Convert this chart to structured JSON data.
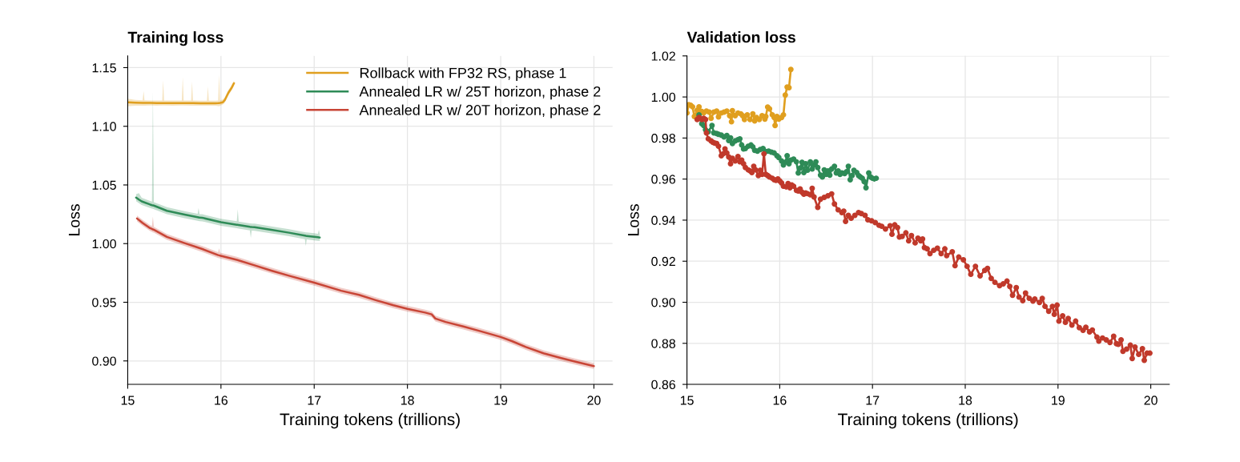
{
  "chart_data": [
    {
      "type": "line",
      "title": "Training loss",
      "xlabel": "Training tokens (trillions)",
      "ylabel": "Loss",
      "xlim": [
        15,
        20.2
      ],
      "ylim": [
        0.88,
        1.16
      ],
      "xticks": [
        15,
        16,
        17,
        18,
        19,
        20
      ],
      "yticks": [
        {
          "value": 0.9,
          "label": "0.90"
        },
        0.95,
        {
          "value": 1.0,
          "label": "1.00"
        },
        1.05,
        {
          "value": 1.1,
          "label": "1.10"
        },
        1.15
      ],
      "grid": true,
      "legend": "top right",
      "line_style": "solid",
      "marker": "none",
      "series": [
        {
          "name": "Rollback with FP32 RS, phase 1",
          "color": "#e09f1f",
          "x": [
            15.0,
            15.08,
            15.16,
            15.17,
            15.18,
            15.25,
            15.31,
            15.37,
            15.38,
            15.39,
            15.48,
            15.58,
            15.59,
            15.6,
            15.68,
            15.69,
            15.7,
            15.78,
            15.85,
            15.86,
            15.87,
            15.94,
            15.97,
            15.98,
            15.99,
            16.02,
            16.04,
            16.08,
            16.11,
            16.14
          ],
          "values": [
            1.1205,
            1.1202,
            1.12,
            1.12,
            1.12,
            1.1199,
            1.1198,
            1.1197,
            1.1197,
            1.1197,
            1.1197,
            1.1198,
            1.1198,
            1.1198,
            1.1197,
            1.1197,
            1.1197,
            1.1196,
            1.1196,
            1.1196,
            1.1196,
            1.1196,
            1.1197,
            1.1198,
            1.1199,
            1.1205,
            1.1222,
            1.1287,
            1.1322,
            1.1367
          ],
          "lower": [
            1.117,
            1.1175,
            1.1175,
            1.1175,
            1.1175,
            1.1178,
            1.1176,
            1.1177,
            1.1177,
            1.1177,
            1.1176,
            1.1178,
            1.1178,
            1.1178,
            1.1176,
            1.1176,
            1.1176,
            1.1175,
            1.1176,
            1.1176,
            1.1176,
            1.1175,
            1.1172,
            1.117,
            1.1175,
            1.1185,
            1.12,
            1.1262,
            1.13,
            1.1345
          ],
          "upper": [
            1.1235,
            1.1225,
            1.1222,
            1.13,
            1.1222,
            1.122,
            1.122,
            1.122,
            1.139,
            1.122,
            1.122,
            1.122,
            1.142,
            1.122,
            1.122,
            1.138,
            1.122,
            1.1218,
            1.1218,
            1.134,
            1.1218,
            1.1218,
            1.122,
            1.144,
            1.1222,
            1.1228,
            1.1245,
            1.131,
            1.1345,
            1.139
          ]
        },
        {
          "name": "Annealed LR w/ 25T horizon, phase 2",
          "color": "#2e8b57",
          "x": [
            15.09,
            15.12,
            15.15,
            15.24,
            15.26,
            15.27,
            15.28,
            15.42,
            15.61,
            15.75,
            15.76,
            15.77,
            15.8,
            16.0,
            16.17,
            16.18,
            16.19,
            16.31,
            16.32,
            16.33,
            16.36,
            16.54,
            16.73,
            16.9,
            16.91,
            16.92,
            17.0,
            17.04,
            17.05,
            17.06
          ],
          "values": [
            1.0392,
            1.0375,
            1.036,
            1.0333,
            1.0328,
            1.0326,
            1.0324,
            1.028,
            1.0247,
            1.0225,
            1.0223,
            1.0221,
            1.022,
            1.0182,
            1.0161,
            1.016,
            1.0158,
            1.0143,
            1.0142,
            1.0141,
            1.014,
            1.0117,
            1.0093,
            1.0068,
            1.0066,
            1.0065,
            1.0058,
            1.0054,
            1.0053,
            1.0052
          ],
          "lower": [
            1.0362,
            1.0345,
            1.033,
            1.0303,
            1.0298,
            1.0296,
            1.0294,
            1.025,
            1.0217,
            1.0195,
            1.0193,
            1.0191,
            1.019,
            1.0152,
            1.0131,
            1.013,
            1.0128,
            1.0113,
            1.005,
            1.0111,
            1.011,
            1.0087,
            1.0063,
            1.0038,
            0.998,
            1.0035,
            1.0028,
            1.0024,
            1.0023,
            1.0022
          ],
          "upper": [
            1.0422,
            1.043,
            1.039,
            1.0363,
            1.0358,
            1.13,
            1.0354,
            1.031,
            1.0277,
            1.0255,
            1.0303,
            1.0251,
            1.025,
            1.0212,
            1.0191,
            1.0294,
            1.0188,
            1.0173,
            1.0172,
            1.0171,
            1.017,
            1.0147,
            1.0123,
            1.0098,
            1.0096,
            1.0095,
            1.0088,
            1.0084,
            1.0117,
            1.0082
          ]
        },
        {
          "name": "Annealed LR w/ 20T horizon, phase 2",
          "color": "#c84536",
          "x": [
            15.1,
            15.16,
            15.24,
            15.26,
            15.27,
            15.28,
            15.42,
            15.61,
            15.8,
            15.97,
            15.98,
            15.99,
            16.17,
            16.36,
            16.54,
            16.73,
            17.0,
            17.29,
            17.48,
            17.66,
            17.85,
            18.0,
            18.19,
            18.26,
            18.3,
            18.41,
            18.6,
            18.79,
            19.0,
            19.12,
            19.27,
            19.46,
            19.65,
            19.83,
            20.0
          ],
          "values": [
            1.0214,
            1.0176,
            1.0132,
            1.0125,
            1.0121,
            1.0118,
            1.0057,
            1.0004,
            0.9954,
            0.9902,
            0.99,
            0.9898,
            0.9862,
            0.9815,
            0.977,
            0.9726,
            0.9667,
            0.9598,
            0.9563,
            0.9518,
            0.9474,
            0.9444,
            0.9412,
            0.9397,
            0.9361,
            0.9332,
            0.9293,
            0.9252,
            0.9204,
            0.9169,
            0.9119,
            0.9065,
            0.9024,
            0.8988,
            0.8956
          ],
          "lower": [
            1.0189,
            1.0151,
            1.0107,
            1.01,
            1.0096,
            1.0093,
            1.0032,
            0.9979,
            0.9929,
            0.9877,
            0.9875,
            0.9873,
            0.9837,
            0.979,
            0.9745,
            0.9701,
            0.9642,
            0.9573,
            0.9538,
            0.9493,
            0.9449,
            0.9419,
            0.9387,
            0.9372,
            0.9336,
            0.9307,
            0.9268,
            0.9227,
            0.9179,
            0.9144,
            0.9094,
            0.904,
            0.8999,
            0.8963,
            0.8931
          ],
          "upper": [
            1.0239,
            1.0201,
            1.0157,
            1.015,
            1.023,
            1.0143,
            1.0082,
            1.0029,
            0.9979,
            0.9927,
            0.996,
            0.9923,
            0.9887,
            0.984,
            0.9795,
            0.9751,
            0.9692,
            0.9623,
            0.9588,
            0.9543,
            0.9499,
            0.9469,
            0.9437,
            0.9422,
            0.9386,
            0.9357,
            0.9318,
            0.9277,
            0.9229,
            0.9194,
            0.9144,
            0.909,
            0.9049,
            0.9013,
            0.8981
          ]
        }
      ]
    },
    {
      "type": "line",
      "title": "Validation loss",
      "xlabel": "Training tokens (trillions)",
      "ylabel": "Loss",
      "xlim": [
        15,
        20.2
      ],
      "ylim": [
        0.86,
        1.02
      ],
      "xticks": [
        15,
        16,
        17,
        18,
        19,
        20
      ],
      "yticks": [
        0.86,
        0.88,
        {
          "value": 0.9,
          "label": "0.90"
        },
        0.92,
        0.94,
        0.96,
        0.98,
        {
          "value": 1.0,
          "label": "1.00"
        },
        1.02
      ],
      "grid": true,
      "legend": false,
      "line_style": "solid",
      "marker": "circle",
      "series": [
        {
          "color": "#e09f1f",
          "x": [
            15.0,
            15.02,
            15.04,
            15.06,
            15.08,
            15.11,
            15.13,
            15.16,
            15.18,
            15.21,
            15.24,
            15.26,
            15.29,
            15.32,
            15.34,
            15.37,
            15.4,
            15.43,
            15.46,
            15.48,
            15.49,
            15.52,
            15.55,
            15.58,
            15.6,
            15.62,
            15.65,
            15.68,
            15.71,
            15.73,
            15.75,
            15.78,
            15.81,
            15.84,
            15.85,
            15.87,
            15.89,
            15.92,
            15.94,
            15.95,
            15.97,
            15.99,
            16.02,
            16.04,
            16.06,
            16.08,
            16.1,
            16.12
          ],
          "values": [
            0.9922,
            0.9962,
            0.996,
            0.9952,
            0.9905,
            0.9935,
            0.9952,
            0.9929,
            0.9922,
            0.9931,
            0.9926,
            0.9896,
            0.9926,
            0.9931,
            0.9903,
            0.9922,
            0.9926,
            0.9931,
            0.9909,
            0.9879,
            0.9933,
            0.9909,
            0.9922,
            0.9918,
            0.9909,
            0.989,
            0.9913,
            0.989,
            0.9918,
            0.9883,
            0.99,
            0.989,
            0.9909,
            0.9892,
            0.9905,
            0.9951,
            0.9942,
            0.9913,
            0.99,
            0.9861,
            0.9905,
            0.9892,
            0.99,
            0.9913,
            1.0009,
            1.0048,
            1.0045,
            1.0134
          ]
        },
        {
          "color": "#2e8b57",
          "x": [
            15.13,
            15.16,
            15.18,
            15.2,
            15.23,
            15.27,
            15.29,
            15.32,
            15.34,
            15.37,
            15.4,
            15.43,
            15.45,
            15.47,
            15.49,
            15.52,
            15.55,
            15.57,
            15.59,
            15.61,
            15.63,
            15.66,
            15.69,
            15.71,
            15.73,
            15.76,
            15.79,
            15.82,
            15.85,
            15.88,
            15.91,
            15.94,
            15.97,
            15.99,
            16.02,
            16.04,
            16.06,
            16.08,
            16.1,
            16.12,
            16.15,
            16.18,
            16.2,
            16.22,
            16.24,
            16.26,
            16.28,
            16.3,
            16.33,
            16.35,
            16.37,
            16.39,
            16.41,
            16.44,
            16.46,
            16.48,
            16.5,
            16.52,
            16.54,
            16.56,
            16.59,
            16.61,
            16.63,
            16.65,
            16.67,
            16.7,
            16.72,
            16.74,
            16.76,
            16.78,
            16.8,
            16.83,
            16.85,
            16.87,
            16.89,
            16.91,
            16.93,
            16.96,
            16.98,
            17.0,
            17.02,
            17.04
          ],
          "values": [
            0.9913,
            0.987,
            0.9861,
            0.984,
            0.9831,
            0.9861,
            0.9825,
            0.9822,
            0.9818,
            0.9814,
            0.9805,
            0.9812,
            0.9788,
            0.9801,
            0.9773,
            0.9786,
            0.9792,
            0.9796,
            0.9766,
            0.9747,
            0.9749,
            0.976,
            0.9766,
            0.9757,
            0.974,
            0.9736,
            0.9744,
            0.9749,
            0.9734,
            0.9736,
            0.9731,
            0.9727,
            0.9714,
            0.9705,
            0.9688,
            0.9669,
            0.9682,
            0.9714,
            0.9675,
            0.9692,
            0.9697,
            0.9684,
            0.963,
            0.9653,
            0.9682,
            0.9632,
            0.9675,
            0.9643,
            0.9684,
            0.9649,
            0.9669,
            0.9684,
            0.9656,
            0.9619,
            0.961,
            0.9645,
            0.9623,
            0.964,
            0.9619,
            0.9649,
            0.9662,
            0.963,
            0.964,
            0.9623,
            0.963,
            0.9627,
            0.9636,
            0.9662,
            0.9597,
            0.9617,
            0.9643,
            0.9632,
            0.9617,
            0.961,
            0.9604,
            0.9588,
            0.9558,
            0.963,
            0.961,
            0.9604,
            0.9601,
            0.9604
          ]
        },
        {
          "color": "#c0392b",
          "x": [
            15.11,
            15.13,
            15.16,
            15.18,
            15.2,
            15.21,
            15.23,
            15.26,
            15.28,
            15.3,
            15.32,
            15.34,
            15.37,
            15.39,
            15.41,
            15.43,
            15.45,
            15.47,
            15.49,
            15.52,
            15.55,
            15.57,
            15.59,
            15.61,
            15.63,
            15.66,
            15.68,
            15.7,
            15.72,
            15.74,
            15.77,
            15.79,
            15.81,
            15.83,
            15.85,
            15.87,
            15.89,
            15.92,
            15.94,
            15.96,
            15.98,
            16.0,
            16.02,
            16.04,
            16.07,
            16.09,
            16.11,
            16.13,
            16.15,
            16.18,
            16.2,
            16.22,
            16.24,
            16.26,
            16.28,
            16.3,
            16.33,
            16.35,
            16.37,
            16.41,
            16.44,
            16.48,
            16.52,
            16.56,
            16.59,
            16.63,
            16.67,
            16.69,
            16.71,
            16.74,
            16.77,
            16.81,
            16.85,
            16.88,
            16.92,
            16.95,
            16.99,
            17.03,
            17.07,
            17.1,
            17.14,
            17.19,
            17.21,
            17.24,
            17.27,
            17.29,
            17.32,
            17.36,
            17.39,
            17.42,
            17.46,
            17.49,
            17.52,
            17.54,
            17.56,
            17.59,
            17.62,
            17.66,
            17.7,
            17.74,
            17.78,
            17.8,
            17.86,
            17.89,
            17.93,
            17.98,
            18.02,
            18.06,
            18.11,
            18.16,
            18.21,
            18.24,
            18.28,
            18.32,
            18.37,
            18.41,
            18.45,
            18.48,
            18.51,
            18.55,
            18.58,
            18.62,
            18.65,
            18.69,
            18.73,
            18.75,
            18.8,
            18.83,
            18.86,
            18.9,
            18.94,
            18.96,
            18.99,
            19.01,
            19.05,
            19.08,
            19.11,
            19.15,
            19.19,
            19.23,
            19.27,
            19.3,
            19.34,
            19.37,
            19.42,
            19.44,
            19.48,
            19.52,
            19.56,
            19.6,
            19.63,
            19.65,
            19.68,
            19.7,
            19.74,
            19.78,
            19.8,
            19.83,
            19.87,
            19.91,
            19.93,
            19.96,
            19.99
          ],
          "values": [
            0.989,
            0.99,
            0.989,
            0.9896,
            0.989,
            0.9825,
            0.9796,
            0.9786,
            0.9779,
            0.9775,
            0.9773,
            0.976,
            0.9714,
            0.9723,
            0.9747,
            0.9727,
            0.9708,
            0.9675,
            0.9701,
            0.9688,
            0.971,
            0.9684,
            0.9692,
            0.9675,
            0.9656,
            0.9645,
            0.964,
            0.9632,
            0.9662,
            0.9645,
            0.9617,
            0.9643,
            0.9623,
            0.9723,
            0.9623,
            0.9617,
            0.961,
            0.9604,
            0.9597,
            0.9594,
            0.9601,
            0.9591,
            0.9581,
            0.9565,
            0.9562,
            0.9578,
            0.9558,
            0.9571,
            0.9565,
            0.9545,
            0.9542,
            0.9552,
            0.9536,
            0.9526,
            0.9532,
            0.9529,
            0.9523,
            0.9555,
            0.9513,
            0.9462,
            0.9502,
            0.9511,
            0.9519,
            0.9528,
            0.9479,
            0.945,
            0.9437,
            0.9444,
            0.9394,
            0.9423,
            0.9409,
            0.9423,
            0.9437,
            0.9432,
            0.9423,
            0.9402,
            0.9397,
            0.9388,
            0.9375,
            0.937,
            0.9357,
            0.9373,
            0.9331,
            0.9377,
            0.9364,
            0.9318,
            0.9321,
            0.9338,
            0.9299,
            0.9325,
            0.9289,
            0.9312,
            0.9299,
            0.9308,
            0.9266,
            0.926,
            0.9237,
            0.9253,
            0.9263,
            0.9237,
            0.926,
            0.9227,
            0.9246,
            0.9178,
            0.922,
            0.9207,
            0.9175,
            0.9136,
            0.9175,
            0.9129,
            0.9155,
            0.9165,
            0.9116,
            0.9097,
            0.9081,
            0.909,
            0.9103,
            0.9077,
            0.9034,
            0.9071,
            0.9025,
            0.9008,
            0.9045,
            0.9019,
            0.9006,
            0.9016,
            0.8999,
            0.9019,
            0.898,
            0.8956,
            0.898,
            0.8941,
            0.8986,
            0.8908,
            0.8934,
            0.8902,
            0.8921,
            0.8889,
            0.8908,
            0.8876,
            0.8863,
            0.8878,
            0.8856,
            0.8865,
            0.883,
            0.8811,
            0.8826,
            0.8817,
            0.8804,
            0.8834,
            0.8798,
            0.8795,
            0.8817,
            0.8761,
            0.8772,
            0.8791,
            0.8726,
            0.8782,
            0.8746,
            0.8774,
            0.8717,
            0.8752,
            0.8752
          ]
        }
      ]
    }
  ]
}
